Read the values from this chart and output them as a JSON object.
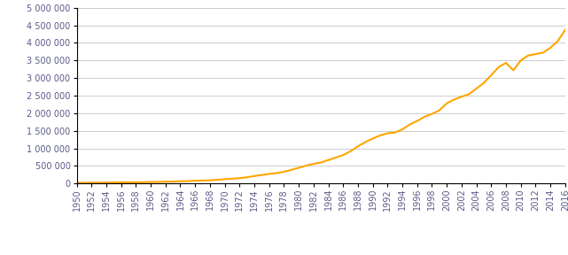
{
  "years": [
    1950,
    1951,
    1952,
    1953,
    1954,
    1955,
    1956,
    1957,
    1958,
    1959,
    1960,
    1961,
    1962,
    1963,
    1964,
    1965,
    1966,
    1967,
    1968,
    1969,
    1970,
    1971,
    1972,
    1973,
    1974,
    1975,
    1976,
    1977,
    1978,
    1979,
    1980,
    1981,
    1982,
    1983,
    1984,
    1985,
    1986,
    1987,
    1988,
    1989,
    1990,
    1991,
    1992,
    1993,
    1994,
    1995,
    1996,
    1997,
    1998,
    1999,
    2000,
    2001,
    2002,
    2003,
    2004,
    2005,
    2006,
    2007,
    2008,
    2009,
    2010,
    2011,
    2012,
    2013,
    2014,
    2015,
    2016
  ],
  "values": [
    21000,
    23000,
    26000,
    27000,
    29000,
    32000,
    34000,
    36000,
    38000,
    41000,
    45000,
    49000,
    54000,
    58000,
    65000,
    72000,
    80000,
    87000,
    95000,
    108000,
    125000,
    138000,
    155000,
    180000,
    215000,
    245000,
    275000,
    300000,
    335000,
    390000,
    450000,
    510000,
    560000,
    600000,
    670000,
    740000,
    810000,
    920000,
    1060000,
    1180000,
    1280000,
    1370000,
    1430000,
    1450000,
    1540000,
    1680000,
    1780000,
    1900000,
    1980000,
    2080000,
    2280000,
    2390000,
    2470000,
    2540000,
    2700000,
    2860000,
    3080000,
    3310000,
    3430000,
    3220000,
    3500000,
    3640000,
    3680000,
    3720000,
    3860000,
    4050000,
    4370000
  ],
  "line_color": "#FFA500",
  "line_width": 1.5,
  "ylim": [
    0,
    5000000
  ],
  "ytick_values": [
    0,
    500000,
    1000000,
    1500000,
    2000000,
    2500000,
    3000000,
    3500000,
    4000000,
    4500000,
    5000000
  ],
  "bg_color": "#ffffff",
  "grid_color": "#cccccc",
  "axis_color": "#000000",
  "tick_label_color": "#5a5a8a",
  "tick_fontsize": 7.0,
  "xlim_left": 1950,
  "xlim_right": 2016
}
